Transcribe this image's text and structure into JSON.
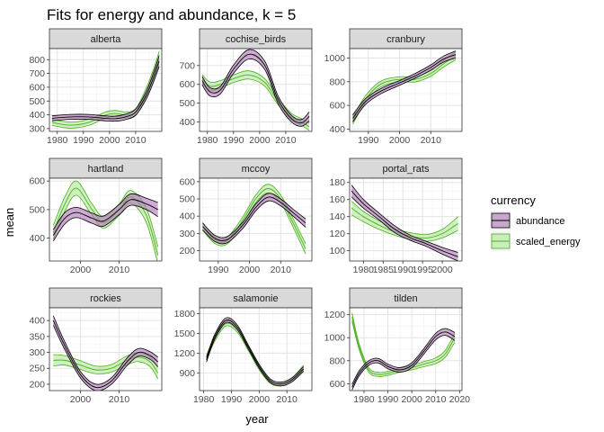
{
  "chart_data": {
    "type": "line",
    "title": "Fits for energy and abundance, k = 5",
    "xlabel": "year",
    "ylabel": "mean",
    "grid": true,
    "legend": {
      "title": "currency",
      "placement": "right",
      "entries": [
        {
          "label": "abundance",
          "line_color": "#000000",
          "fill_color": "#b07cb8"
        },
        {
          "label": "scaled_energy",
          "line_color": "#4cae1e",
          "fill_color": "#b6e8a0"
        }
      ]
    },
    "panels": [
      {
        "name": "alberta",
        "xlim": [
          1977,
          2020
        ],
        "ylim": [
          280,
          880
        ],
        "xticks": [
          1980,
          1990,
          2000,
          2010
        ],
        "xtick_labels": [
          "1980",
          "1990",
          "2000",
          "2010"
        ],
        "yticks": [
          300,
          400,
          500,
          600,
          700,
          800
        ],
        "ytick_labels": [
          "300",
          "400",
          "500",
          "600",
          "700",
          "800"
        ],
        "x": [
          1978,
          1985,
          1992,
          1998,
          2002,
          2006,
          2010,
          2014,
          2017,
          2019
        ],
        "series": [
          {
            "name": "abundance",
            "mean": [
              375,
              385,
              385,
              375,
              372,
              385,
              420,
              540,
              680,
              790
            ],
            "hw": [
              18,
              18,
              18,
              18,
              18,
              20,
              22,
              28,
              35,
              40
            ]
          },
          {
            "name": "scaled_energy",
            "mean": [
              345,
              325,
              345,
              395,
              410,
              400,
              420,
              560,
              700,
              810
            ],
            "hw": [
              22,
              22,
              22,
              22,
              22,
              22,
              25,
              32,
              40,
              50
            ]
          }
        ]
      },
      {
        "name": "cochise_birds",
        "xlim": [
          1977,
          2020
        ],
        "ylim": [
          350,
          790
        ],
        "xticks": [
          1980,
          1990,
          2000,
          2010
        ],
        "xtick_labels": [
          "1980",
          "1990",
          "2000",
          "2010"
        ],
        "yticks": [
          400,
          500,
          600,
          700
        ],
        "ytick_labels": [
          "400",
          "500",
          "600",
          "700"
        ],
        "x": [
          1978,
          1981,
          1985,
          1990,
          1996,
          2002,
          2007,
          2012,
          2016,
          2019
        ],
        "series": [
          {
            "name": "abundance",
            "mean": [
              620,
              560,
              570,
              680,
              760,
              700,
              520,
              420,
              395,
              430
            ],
            "hw": [
              22,
              22,
              20,
              22,
              25,
              22,
              20,
              18,
              18,
              24
            ]
          },
          {
            "name": "scaled_energy",
            "mean": [
              630,
              590,
              600,
              630,
              650,
              610,
              510,
              430,
              400,
              375
            ],
            "hw": [
              22,
              22,
              20,
              20,
              22,
              20,
              18,
              18,
              18,
              20
            ]
          }
        ]
      },
      {
        "name": "cranbury",
        "xlim": [
          1984,
          2020
        ],
        "ylim": [
          380,
          1080
        ],
        "xticks": [
          1990,
          2000,
          2010
        ],
        "xtick_labels": [
          "1990",
          "2000",
          "2010"
        ],
        "yticks": [
          400,
          600,
          800,
          1000
        ],
        "ytick_labels": [
          "400",
          "600",
          "800",
          "1000"
        ],
        "x": [
          1985,
          1989,
          1994,
          2000,
          2005,
          2010,
          2014,
          2018
        ],
        "series": [
          {
            "name": "abundance",
            "mean": [
              490,
              630,
              720,
              790,
              850,
              920,
              990,
              1030
            ],
            "hw": [
              30,
              25,
              22,
              20,
              20,
              22,
              25,
              30
            ]
          },
          {
            "name": "scaled_energy",
            "mean": [
              470,
              650,
              780,
              820,
              820,
              870,
              950,
              1020
            ],
            "hw": [
              30,
              28,
              25,
              22,
              22,
              24,
              28,
              35
            ]
          }
        ]
      },
      {
        "name": "hartland",
        "xlim": [
          1992,
          2021
        ],
        "ylim": [
          320,
          610
        ],
        "xticks": [
          2000,
          2010
        ],
        "xtick_labels": [
          "2000",
          "2010"
        ],
        "yticks": [
          400,
          500,
          600
        ],
        "ytick_labels": [
          "400",
          "500",
          "600"
        ],
        "x": [
          1993,
          1996,
          1999,
          2003,
          2006,
          2010,
          2013,
          2017,
          2020
        ],
        "series": [
          {
            "name": "abundance",
            "mean": [
              410,
              470,
              490,
              470,
              460,
              500,
              535,
              520,
              500
            ],
            "hw": [
              20,
              20,
              18,
              18,
              18,
              18,
              20,
              20,
              25
            ]
          },
          {
            "name": "scaled_energy",
            "mean": [
              420,
              520,
              575,
              500,
              455,
              500,
              545,
              480,
              340
            ],
            "hw": [
              25,
              25,
              25,
              20,
              20,
              20,
              22,
              25,
              30
            ]
          }
        ]
      },
      {
        "name": "mccoy",
        "xlim": [
          1984,
          2020
        ],
        "ylim": [
          140,
          620
        ],
        "xticks": [
          1990,
          2000,
          2010
        ],
        "xtick_labels": [
          "1990",
          "2000",
          "2010"
        ],
        "yticks": [
          200,
          300,
          400,
          500,
          600
        ],
        "ytick_labels": [
          "200",
          "300",
          "400",
          "500",
          "600"
        ],
        "x": [
          1985,
          1989,
          1993,
          1998,
          2002,
          2006,
          2010,
          2014,
          2018
        ],
        "series": [
          {
            "name": "abundance",
            "mean": [
              340,
              270,
              265,
              350,
              450,
              510,
              480,
              420,
              360
            ],
            "hw": [
              20,
              18,
              18,
              18,
              20,
              22,
              20,
              20,
              24
            ]
          },
          {
            "name": "scaled_energy",
            "mean": [
              340,
              260,
              260,
              380,
              500,
              560,
              500,
              360,
              210
            ],
            "hw": [
              22,
              20,
              20,
              20,
              22,
              25,
              22,
              25,
              30
            ]
          }
        ]
      },
      {
        "name": "portal_rats",
        "xlim": [
          1976.5,
          2005
        ],
        "ylim": [
          88,
          185
        ],
        "xticks": [
          1980,
          1985,
          1990,
          1995,
          2000
        ],
        "xtick_labels": [
          "1980",
          "1985",
          "1990",
          "1995",
          "2000"
        ],
        "yticks": [
          100,
          120,
          140,
          160,
          180
        ],
        "ytick_labels": [
          "100",
          "120",
          "140",
          "160",
          "180"
        ],
        "x": [
          1977,
          1980,
          1984,
          1988,
          1992,
          1996,
          2000,
          2004
        ],
        "series": [
          {
            "name": "abundance",
            "mean": [
              170,
              155,
              140,
              125,
              115,
              108,
              100,
              93
            ],
            "hw": [
              7,
              5,
              4,
              4,
              3,
              3,
              4,
              5
            ]
          },
          {
            "name": "scaled_energy",
            "mean": [
              150,
              140,
              130,
              122,
              117,
              115,
              120,
              132
            ],
            "hw": [
              8,
              6,
              5,
              4,
              4,
              4,
              5,
              8
            ]
          }
        ]
      },
      {
        "name": "rockies",
        "xlim": [
          1992,
          2021
        ],
        "ylim": [
          180,
          440
        ],
        "xticks": [
          2000,
          2010
        ],
        "xtick_labels": [
          "2000",
          "2010"
        ],
        "yticks": [
          200,
          250,
          300,
          350,
          400
        ],
        "ytick_labels": [
          "200",
          "250",
          "300",
          "350",
          "400"
        ],
        "x": [
          1993,
          1996,
          2000,
          2004,
          2008,
          2012,
          2015,
          2018,
          2020
        ],
        "series": [
          {
            "name": "abundance",
            "mean": [
              400,
              320,
              230,
              190,
              210,
              270,
              300,
              290,
              270
            ],
            "hw": [
              15,
              12,
              10,
              10,
              10,
              12,
              12,
              12,
              15
            ]
          },
          {
            "name": "scaled_energy",
            "mean": [
              275,
              275,
              260,
              245,
              250,
              275,
              285,
              270,
              235
            ],
            "hw": [
              18,
              15,
              14,
              12,
              12,
              14,
              14,
              15,
              18
            ]
          }
        ]
      },
      {
        "name": "salamonie",
        "xlim": [
          1978.5,
          2019
        ],
        "ylim": [
          630,
          1890
        ],
        "xticks": [
          1980,
          1990,
          2000,
          2010
        ],
        "xtick_labels": [
          "1980",
          "1990",
          "2000",
          "2010"
        ],
        "yticks": [
          900,
          1200,
          1500,
          1800
        ],
        "ytick_labels": [
          "900",
          "1200",
          "1500",
          "1800"
        ],
        "x": [
          1981,
          1984,
          1988,
          1992,
          1996,
          2000,
          2004,
          2008,
          2012,
          2016
        ],
        "series": [
          {
            "name": "abundance",
            "mean": [
              1100,
              1450,
              1700,
              1600,
              1300,
              1000,
              780,
              730,
              800,
              960
            ],
            "hw": [
              35,
              35,
              35,
              35,
              30,
              30,
              28,
              28,
              30,
              35
            ]
          },
          {
            "name": "scaled_energy",
            "mean": [
              1130,
              1420,
              1650,
              1560,
              1280,
              980,
              770,
              730,
              800,
              980
            ],
            "hw": [
              38,
              38,
              38,
              38,
              34,
              32,
              30,
              30,
              32,
              38
            ]
          }
        ]
      },
      {
        "name": "tilden",
        "xlim": [
          1974,
          2021
        ],
        "ylim": [
          540,
          1260
        ],
        "xticks": [
          1980,
          1990,
          2000,
          2010,
          2020
        ],
        "xtick_labels": [
          "1980",
          "1990",
          "2000",
          "2010",
          "2020"
        ],
        "yticks": [
          600,
          800,
          1000,
          1200
        ],
        "ytick_labels": [
          "600",
          "800",
          "1000",
          "1200"
        ],
        "x": [
          1975,
          1978,
          1982,
          1986,
          1990,
          1995,
          2000,
          2005,
          2010,
          2014,
          2018
        ],
        "series": [
          {
            "name": "abundance",
            "mean": [
              570,
              690,
              780,
              800,
              750,
              720,
              760,
              880,
              1010,
              1050,
              1010
            ],
            "hw": [
              25,
              22,
              20,
              20,
              20,
              20,
              22,
              24,
              28,
              30,
              35
            ]
          },
          {
            "name": "scaled_energy",
            "mean": [
              1180,
              920,
              720,
              680,
              690,
              720,
              740,
              770,
              800,
              860,
              1000
            ],
            "hw": [
              35,
              25,
              20,
              18,
              18,
              20,
              20,
              22,
              25,
              30,
              40
            ]
          }
        ]
      }
    ]
  }
}
